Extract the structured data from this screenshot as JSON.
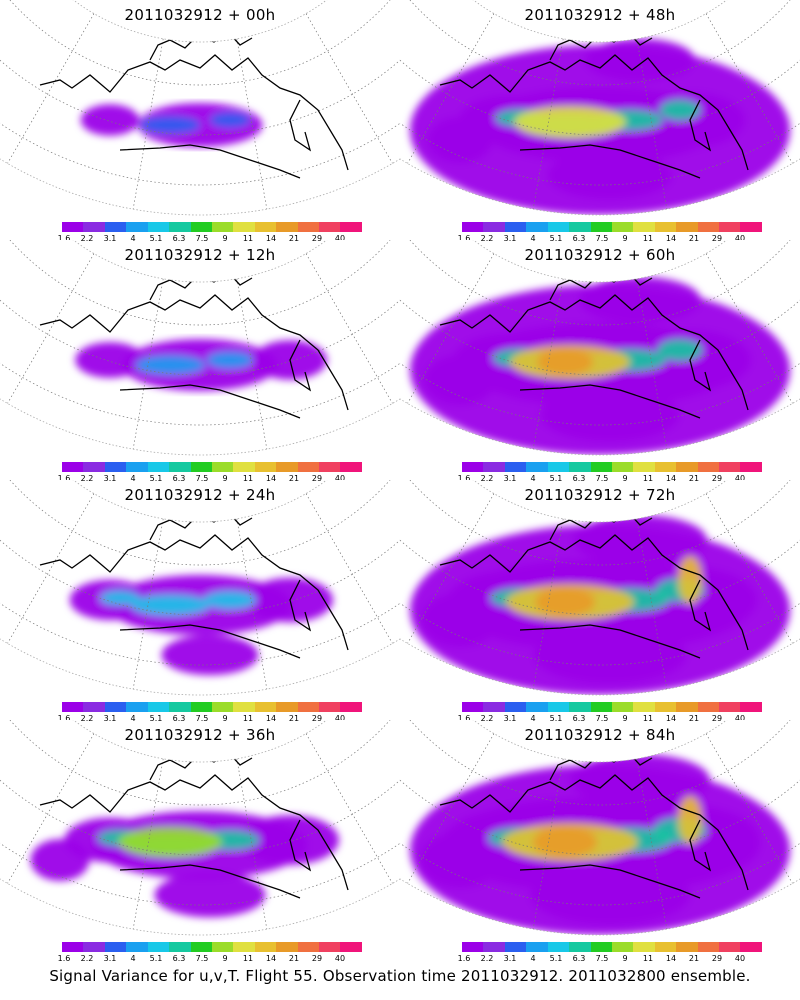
{
  "panels": [
    {
      "title": "2011032912 + 00h",
      "intensity": 0
    },
    {
      "title": "2011032912 + 48h",
      "intensity": 4
    },
    {
      "title": "2011032912 + 12h",
      "intensity": 1
    },
    {
      "title": "2011032912 + 60h",
      "intensity": 5
    },
    {
      "title": "2011032912 + 24h",
      "intensity": 2
    },
    {
      "title": "2011032912 + 72h",
      "intensity": 6
    },
    {
      "title": "2011032912 + 36h",
      "intensity": 3
    },
    {
      "title": "2011032912 + 84h",
      "intensity": 7
    }
  ],
  "colorbar": {
    "labels": [
      "1.6",
      "2.2",
      "3.1",
      "4",
      "5.1",
      "6.3",
      "7.5",
      "9",
      "11",
      "14",
      "21",
      "29",
      "40"
    ],
    "colors": [
      "#9b00e8",
      "#8a2be2",
      "#2a5ff0",
      "#1aa0f0",
      "#18c8e8",
      "#15c9a0",
      "#22cc22",
      "#9bdc2a",
      "#e0e040",
      "#e8c030",
      "#e89a28",
      "#f07040",
      "#f04060",
      "#f0147a"
    ]
  },
  "caption": "Signal Variance for u,v,T. Flight 55. Observation time 2011032912. 2011032800 ensemble."
}
